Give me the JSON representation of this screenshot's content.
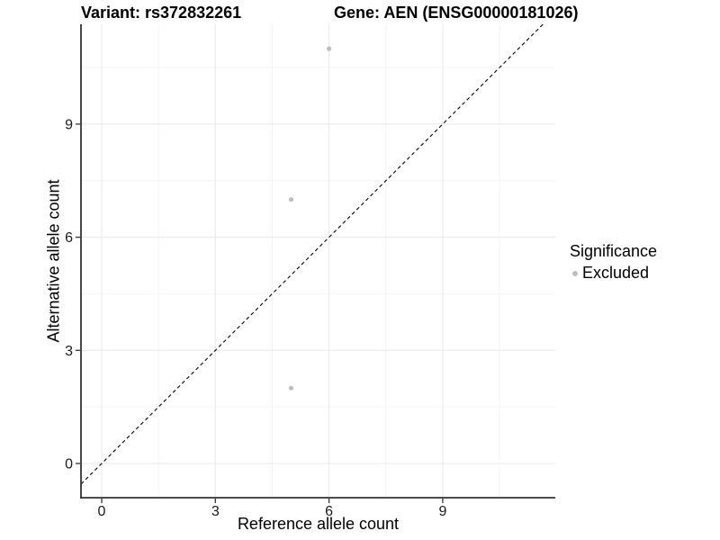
{
  "page": {
    "background": "#FFFFFF"
  },
  "title": {
    "variant": "Variant: rs372832261",
    "gene": "Gene: AEN (ENSG00000181026)"
  },
  "legend": {
    "title": "Significance",
    "items": [
      {
        "label": "Excluded",
        "color": "#BEBEBE"
      }
    ]
  },
  "chart_data": {
    "type": "scatter",
    "title": "Variant: rs372832261    Gene: AEN (ENSG00000181026)",
    "xlabel": "Reference allele count",
    "ylabel": "Alternative allele count",
    "x_ticks": [
      0,
      3,
      6,
      9
    ],
    "y_ticks": [
      0,
      3,
      6,
      9
    ],
    "x_minor_ticks": [
      1.5,
      4.5,
      7.5,
      10.5
    ],
    "y_minor_ticks": [
      1.5,
      4.5,
      7.5,
      10.5
    ],
    "xlim": [
      -0.55,
      11.97
    ],
    "ylim": [
      -0.93,
      11.65
    ],
    "grid": "major+minor",
    "legend_position": "right",
    "series": [
      {
        "name": "Excluded",
        "color": "#BEBEBE",
        "points": [
          [
            6,
            11
          ],
          [
            5,
            7
          ],
          [
            5,
            2
          ]
        ]
      }
    ],
    "reference_line": {
      "type": "identity",
      "equation": "y = x",
      "style": "dashed",
      "color": "#000000"
    }
  },
  "colors": {
    "grid_major": "#E8E8E8",
    "grid_minor": "#F4F4F4",
    "axis_line": "#333333",
    "tick_text": "#1a1a1a",
    "point_default": "#BEBEBE",
    "reference_line": "#000000"
  }
}
